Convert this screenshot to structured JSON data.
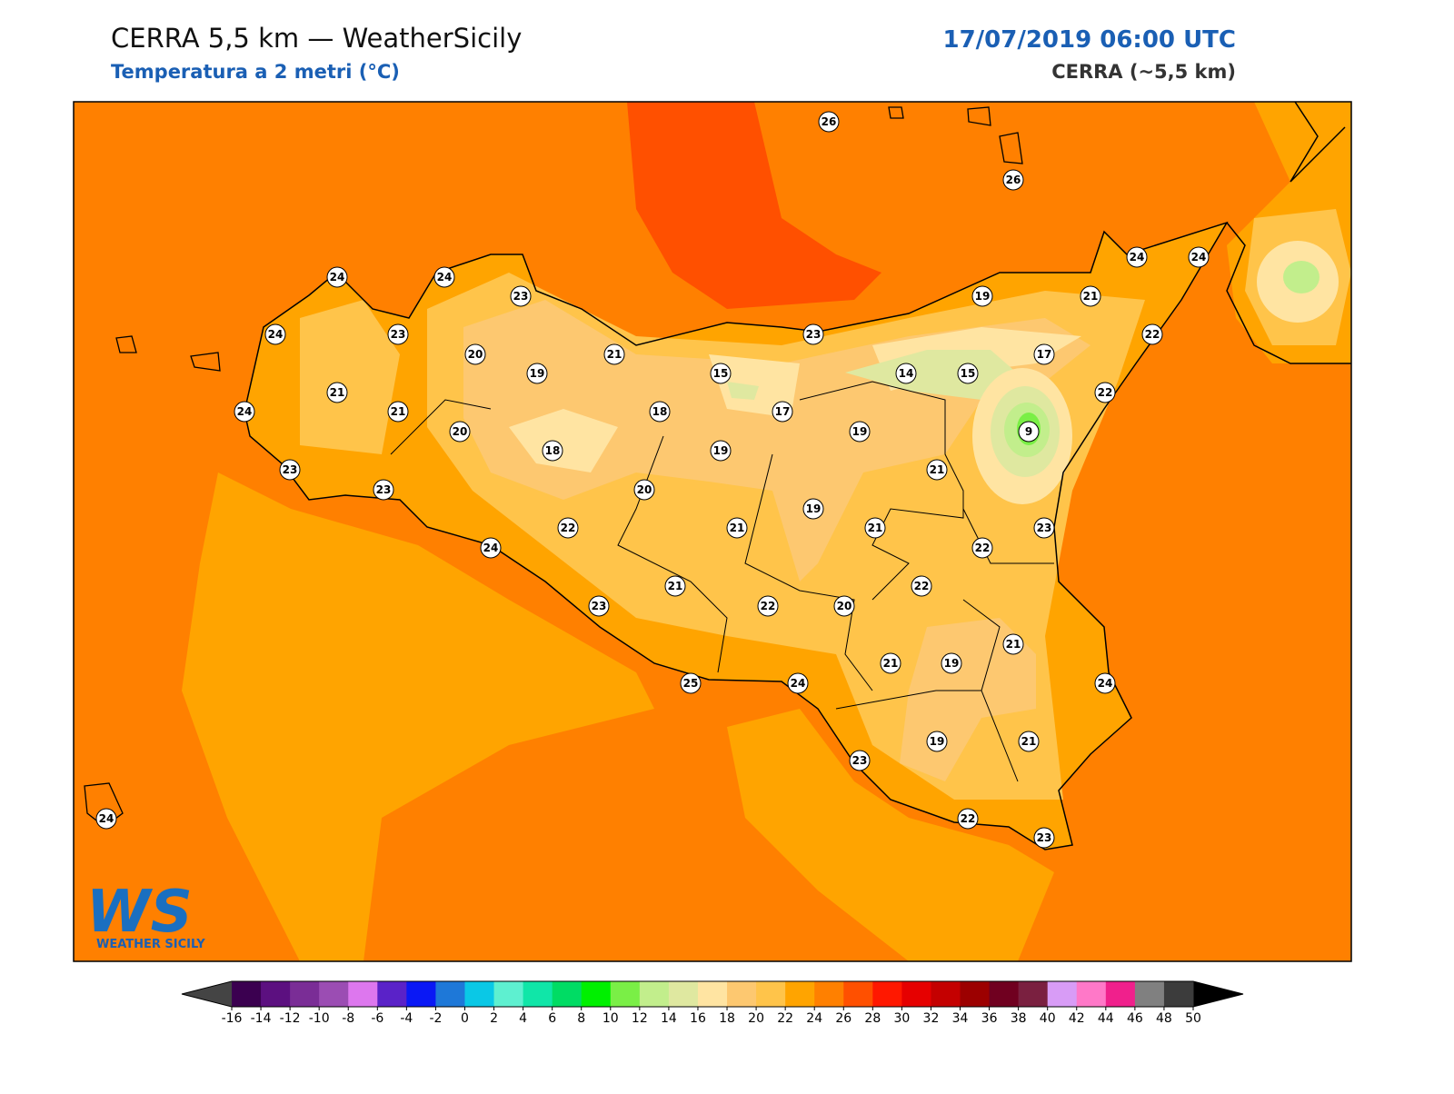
{
  "header": {
    "title": "CERRA 5,5 km — WeatherSicily",
    "subtitle": "Temperatura a 2 metri (°C)",
    "datetime": "17/07/2019 06:00 UTC",
    "model": "CERRA (~5,5 km)"
  },
  "stations": [
    26,
    26,
    24,
    24,
    23,
    24,
    24,
    24,
    23,
    19,
    21,
    20,
    19,
    21,
    23,
    22,
    15,
    14,
    15,
    17,
    21,
    21,
    24,
    18,
    17,
    22,
    20,
    18,
    19,
    19,
    9,
    23,
    23,
    20,
    21,
    22,
    21,
    19,
    21,
    23,
    24,
    22,
    21,
    22,
    23,
    22,
    20,
    21,
    21,
    19,
    25,
    24,
    24,
    19,
    21,
    23,
    22,
    23,
    24
  ],
  "colorbar": {
    "ticks": [
      -16,
      -14,
      -12,
      -10,
      -8,
      -6,
      -4,
      -2,
      0,
      2,
      4,
      6,
      8,
      10,
      12,
      14,
      16,
      18,
      20,
      22,
      24,
      26,
      28,
      30,
      32,
      34,
      36,
      38,
      40,
      42,
      44,
      46,
      48,
      50
    ],
    "colors": [
      "#3b0050",
      "#5c1080",
      "#7a2d96",
      "#9b4db3",
      "#dd77ee",
      "#5a22c8",
      "#0a18f5",
      "#1e78d8",
      "#0ac8e6",
      "#5ef0d0",
      "#10e6a8",
      "#00dc64",
      "#00f000",
      "#7aef46",
      "#c2ee8c",
      "#dfe8a0",
      "#ffe4a2",
      "#fdc870",
      "#ffc44a",
      "#ffa400",
      "#ff8000",
      "#ff5000",
      "#ff1800",
      "#e60000",
      "#c40000",
      "#9c0000",
      "#700020",
      "#7a2040",
      "#d89cf6",
      "#ff78c8",
      "#f0208c",
      "#808080",
      "#3c3c3c"
    ],
    "under_color": "#444444",
    "over_color": "#000000"
  },
  "logo": {
    "mark": "WS",
    "text": "WEATHER SICILY"
  }
}
